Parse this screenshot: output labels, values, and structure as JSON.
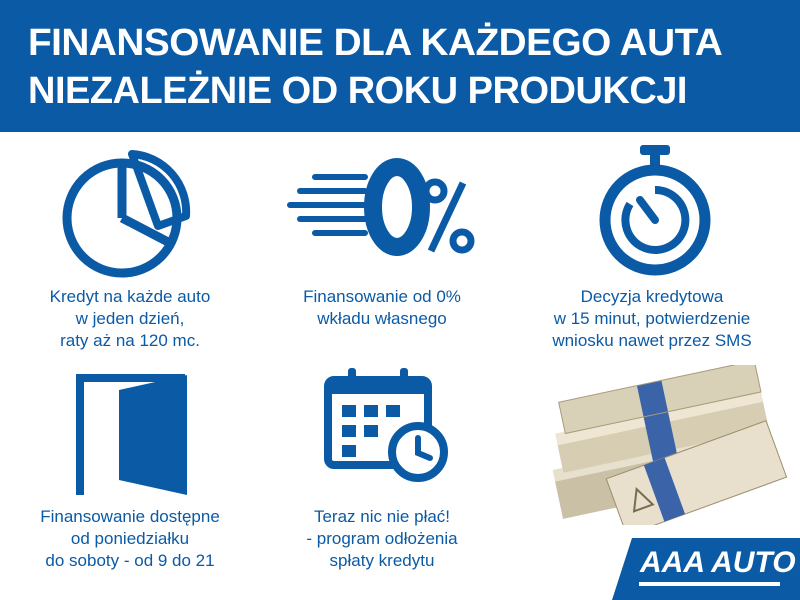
{
  "header": {
    "line1": "FINANSOWANIE DLA KAŻDEGO AUTA",
    "line2": "NIEZALEŻNIE OD ROKU PRODUKCJI"
  },
  "features": [
    {
      "icon": "pie-chart-icon",
      "lines": [
        "Kredyt na każde auto",
        "w jeden dzień,",
        "raty aż na 120 mc."
      ]
    },
    {
      "icon": "zero-percent-icon",
      "lines": [
        "Finansowanie od 0%",
        "wkładu własnego"
      ]
    },
    {
      "icon": "stopwatch-icon",
      "lines": [
        "Decyzja kredytowa",
        "w 15 minut, potwierdzenie",
        "wniosku nawet przez SMS"
      ]
    },
    {
      "icon": "open-door-icon",
      "lines": [
        "Finansowanie dostępne",
        "od poniedziałku",
        "do soboty - od 9 do 21"
      ]
    },
    {
      "icon": "calendar-clock-icon",
      "lines": [
        "Teraz nic nie płać!",
        "- program odłożenia",
        "spłaty kredytu"
      ]
    }
  ],
  "percent_icon_text": "0%",
  "logo": "AAA AUTO",
  "colors": {
    "brand_blue": "#0b5aa6",
    "background": "#ffffff"
  }
}
